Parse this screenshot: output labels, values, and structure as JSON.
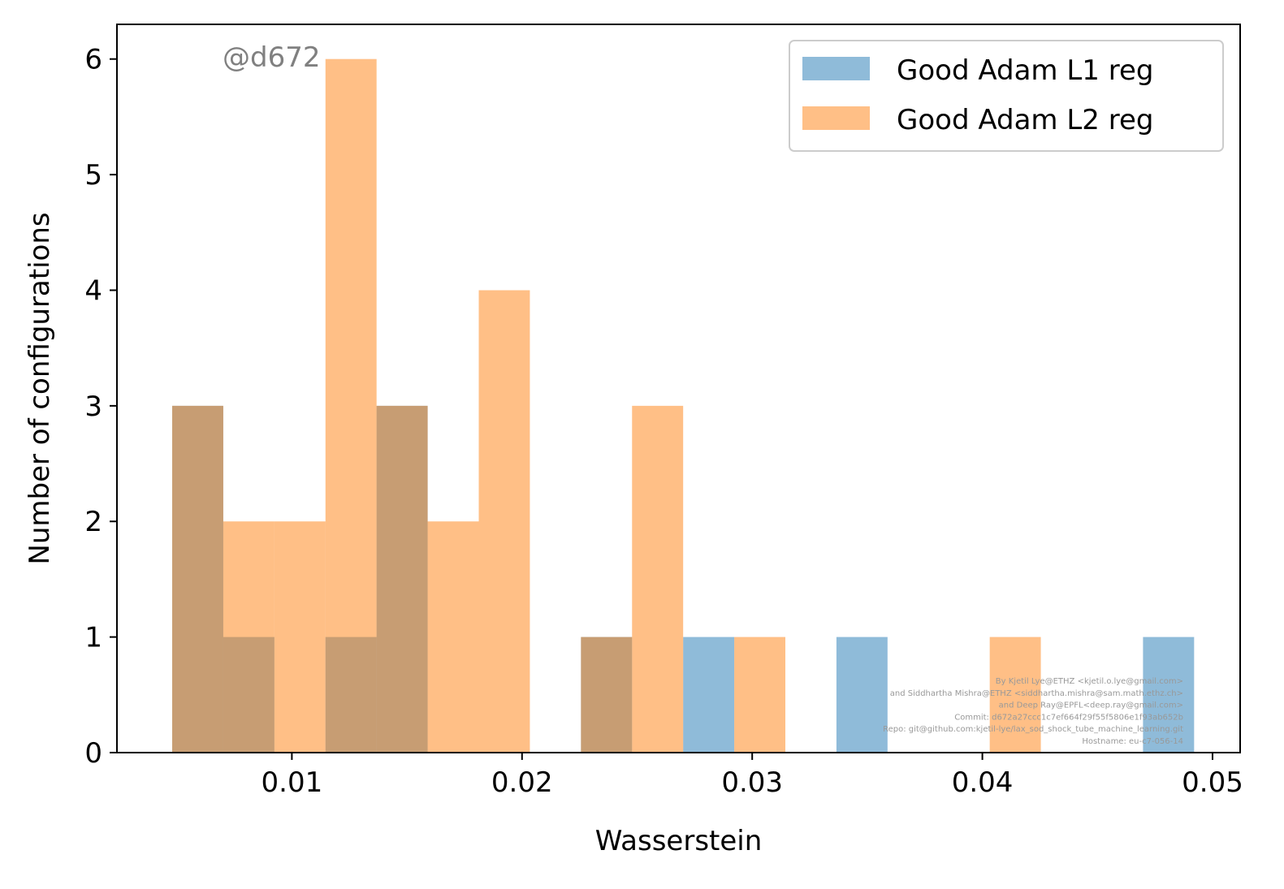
{
  "chart_data": {
    "type": "bar",
    "subtype": "overlapping-histogram",
    "title": "",
    "xlabel": "Wasserstein",
    "ylabel": "Number of configurations",
    "xlim": [
      0.0024,
      0.0512
    ],
    "ylim": [
      0,
      6.3
    ],
    "xticks": [
      0.01,
      0.02,
      0.03,
      0.04,
      0.05
    ],
    "xtick_labels": [
      "0.01",
      "0.02",
      "0.03",
      "0.04",
      "0.05"
    ],
    "yticks": [
      0,
      1,
      2,
      3,
      4,
      5,
      6
    ],
    "ytick_labels": [
      "0",
      "1",
      "2",
      "3",
      "4",
      "5",
      "6"
    ],
    "grid": false,
    "legend_position": "top-right",
    "bin_edges": [
      0.0048,
      0.00702,
      0.00924,
      0.01146,
      0.01368,
      0.0159,
      0.01812,
      0.02034,
      0.02256,
      0.02478,
      0.027,
      0.02922,
      0.03144,
      0.03366,
      0.03588,
      0.0381,
      0.04032,
      0.04254,
      0.04476,
      0.04698,
      0.0492
    ],
    "series": [
      {
        "name": "Good Adam L1 reg",
        "color": "#1f77b4",
        "alpha": 0.5,
        "values": [
          3,
          1,
          0,
          1,
          3,
          0,
          0,
          0,
          1,
          0,
          1,
          0,
          0,
          1,
          0,
          0,
          0,
          0,
          0,
          1
        ]
      },
      {
        "name": "Good Adam L2 reg",
        "color": "#ff7f0e",
        "alpha": 0.5,
        "values": [
          3,
          2,
          2,
          6,
          3,
          2,
          4,
          0,
          1,
          3,
          0,
          1,
          0,
          0,
          0,
          0,
          1,
          0,
          0,
          0
        ]
      }
    ],
    "annotations": {
      "watermark": "@d672",
      "credits": [
        "By Kjetil Lye@ETHZ <kjetil.o.lye@gmail.com>",
        "and Siddhartha Mishra@ETHZ <siddhartha.mishra@sam.math.ethz.ch>",
        "and Deep Ray@EPFL<deep.ray@gmail.com>",
        "Commit: d672a27ccc1c7ef664f29f55f5806e1f93ab652b",
        "Repo: git@github.com:kjetil-lye/lax_sod_shock_tube_machine_learning.git",
        "Hostname: eu-c7-056-14"
      ]
    }
  }
}
